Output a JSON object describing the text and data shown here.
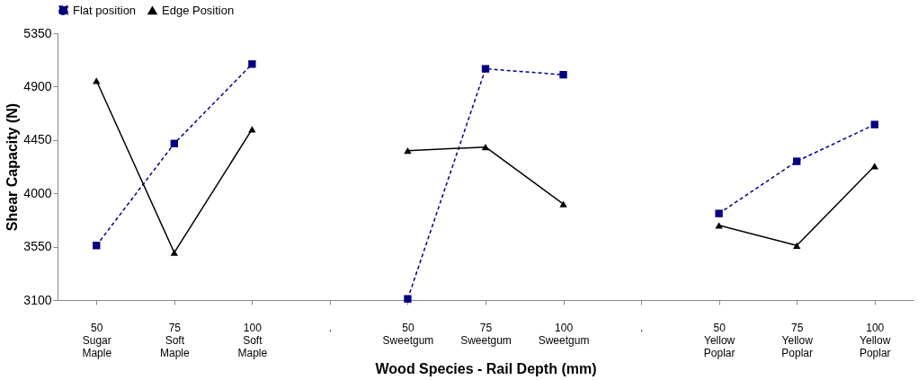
{
  "chart_data": {
    "type": "line",
    "xlabel": "Wood Species - Rail Depth (mm)",
    "ylabel": "Shear Capacity (N)",
    "categories": [
      "50 Sugar Maple",
      "75 Soft Maple",
      "100 Soft Maple",
      ".",
      "50 Sweetgum",
      "75 Sweetgum",
      "100 Sweetgum",
      ".",
      "50 Yellow Poplar",
      "75 Yellow Poplar",
      "100 Yellow Poplar"
    ],
    "series": [
      {
        "name": "Flat position",
        "color": "#000080",
        "marker": "square",
        "line_style": "dashed",
        "values": [
          3560,
          4420,
          5090,
          null,
          3110,
          5050,
          5000,
          null,
          3830,
          4270,
          4580
        ]
      },
      {
        "name": "Edge Position",
        "color": "#000000",
        "marker": "triangle",
        "line_style": "solid",
        "values": [
          4950,
          3500,
          4540,
          null,
          4360,
          4390,
          3910,
          null,
          3730,
          3560,
          4230
        ]
      }
    ],
    "ylim": [
      3100,
      5350
    ],
    "yticks": [
      3100,
      3550,
      4000,
      4450,
      4900,
      5350
    ],
    "grid": false,
    "legend": "top"
  }
}
